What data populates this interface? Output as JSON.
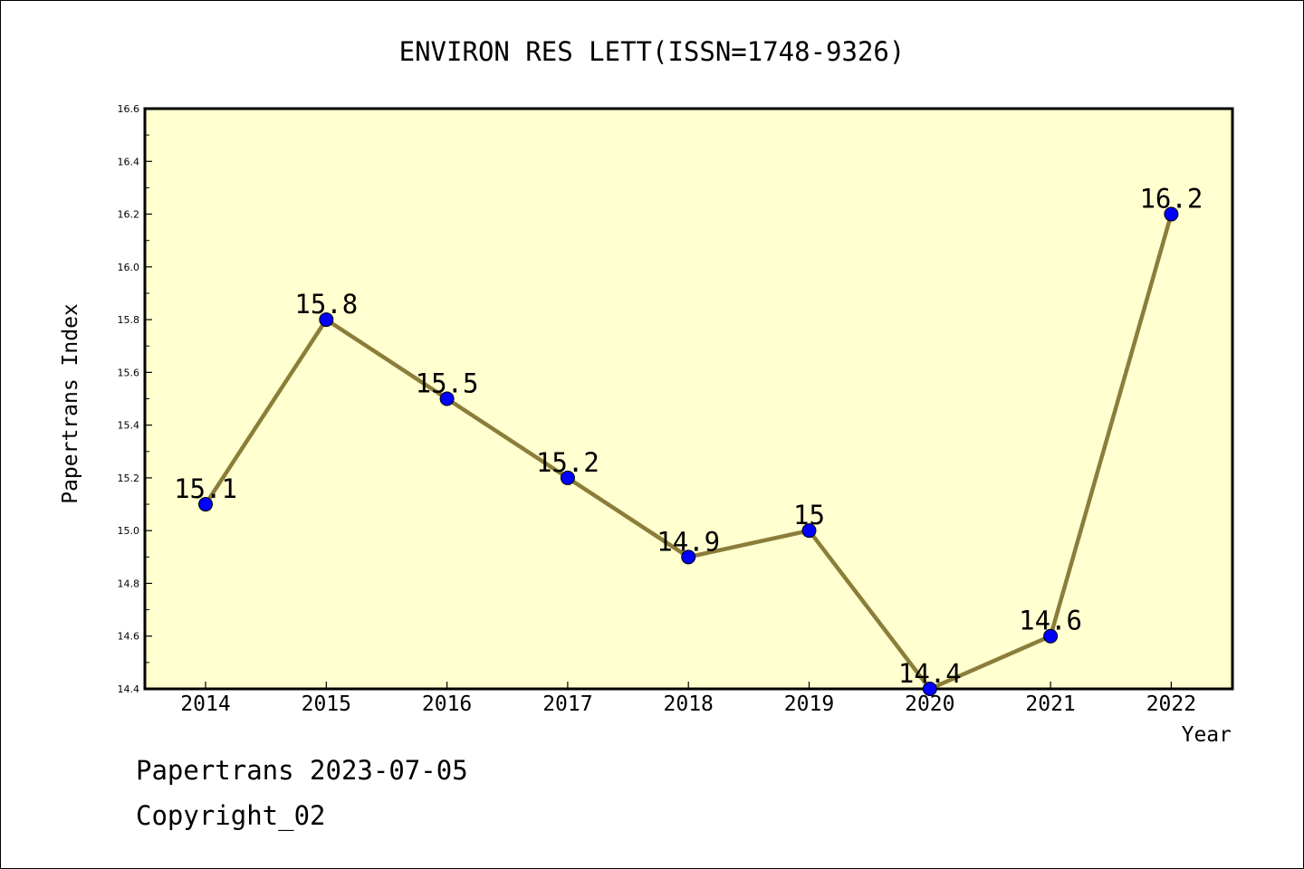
{
  "chart_data": {
    "type": "line",
    "title": "ENVIRON RES LETT(ISSN=1748-9326)",
    "xlabel": "Year",
    "ylabel": "Papertrans Index",
    "categories": [
      "2014",
      "2015",
      "2016",
      "2017",
      "2018",
      "2019",
      "2020",
      "2021",
      "2022"
    ],
    "series": [
      {
        "values": [
          15.1,
          15.8,
          15.5,
          15.2,
          14.9,
          15.0,
          14.4,
          14.6,
          16.2
        ],
        "labels": [
          "15.1",
          "15.8",
          "15.5",
          "15.2",
          "14.9",
          "15",
          "14.4",
          "14.6",
          "16.2"
        ],
        "line_color": "#8b7d3a",
        "marker_color": "#0000ff"
      }
    ],
    "ylim": [
      14.4,
      16.6
    ],
    "yticks": [
      "14.4",
      "14.6",
      "14.8",
      "15.0",
      "15.2",
      "15.4",
      "15.6",
      "15.8",
      "16.0",
      "16.2",
      "16.4",
      "16.6"
    ],
    "plot_background": "#ffffd0",
    "grid": false
  },
  "footer": {
    "line1": "Papertrans 2023-07-05",
    "line2": "Copyright_02"
  }
}
